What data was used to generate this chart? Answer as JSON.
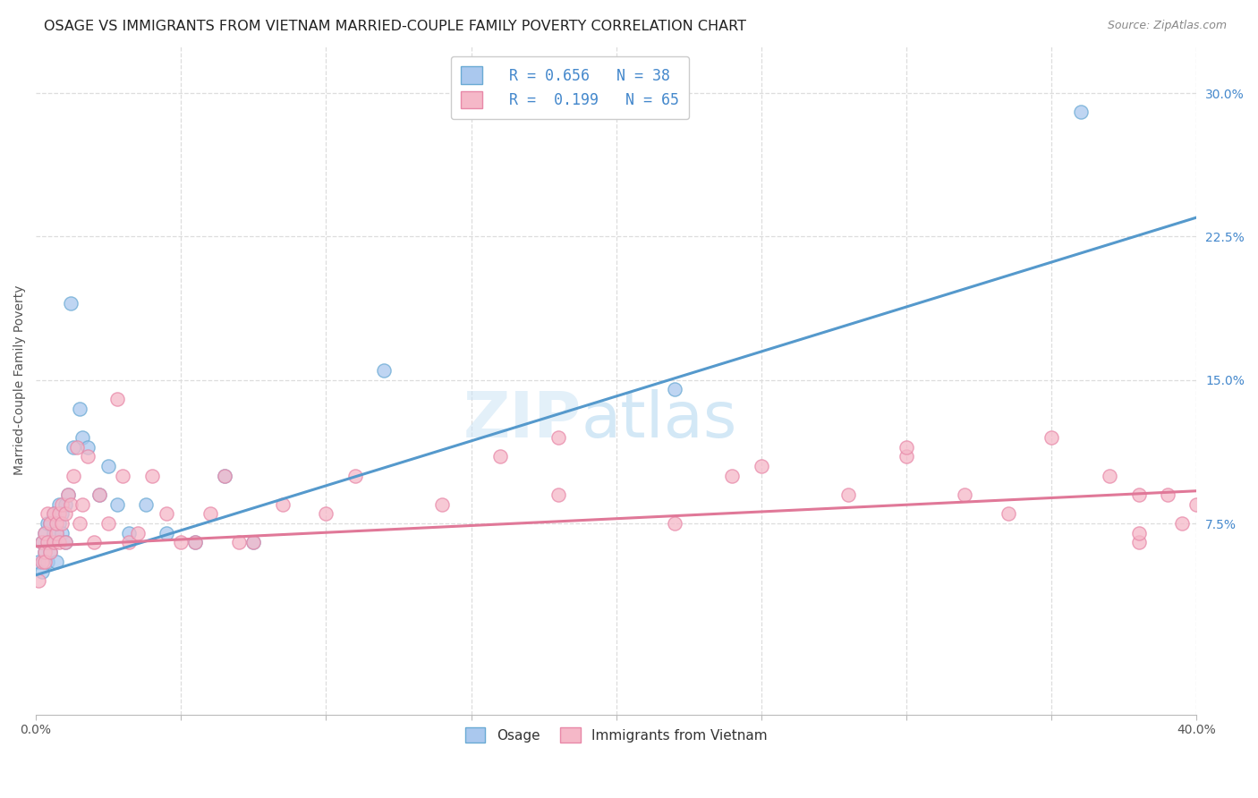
{
  "title": "OSAGE VS IMMIGRANTS FROM VIETNAM MARRIED-COUPLE FAMILY POVERTY CORRELATION CHART",
  "source": "Source: ZipAtlas.com",
  "ylabel": "Married-Couple Family Poverty",
  "ytick_labels": [
    "7.5%",
    "15.0%",
    "22.5%",
    "30.0%"
  ],
  "ytick_values": [
    0.075,
    0.15,
    0.225,
    0.3
  ],
  "xmin": 0.0,
  "xmax": 0.4,
  "ymin": -0.025,
  "ymax": 0.325,
  "color_blue_fill": "#aac8ee",
  "color_blue_edge": "#6aaad4",
  "color_blue_line": "#5599cc",
  "color_pink_fill": "#f5b8c8",
  "color_pink_edge": "#e888a8",
  "color_pink_line": "#e07898",
  "color_blue_text": "#4488cc",
  "color_label_text": "#333333",
  "background_color": "#ffffff",
  "grid_color": "#dddddd",
  "watermark_color": "#cce4f5",
  "title_fontsize": 11.5,
  "source_fontsize": 9,
  "tick_fontsize": 10,
  "ylabel_fontsize": 10,
  "legend_fontsize": 12,
  "osage_x": [
    0.001,
    0.002,
    0.002,
    0.003,
    0.003,
    0.004,
    0.004,
    0.005,
    0.005,
    0.005,
    0.006,
    0.006,
    0.007,
    0.007,
    0.008,
    0.008,
    0.009,
    0.009,
    0.01,
    0.01,
    0.011,
    0.012,
    0.013,
    0.015,
    0.016,
    0.018,
    0.022,
    0.025,
    0.028,
    0.032,
    0.038,
    0.045,
    0.055,
    0.065,
    0.075,
    0.12,
    0.22,
    0.36
  ],
  "osage_y": [
    0.055,
    0.065,
    0.05,
    0.06,
    0.07,
    0.055,
    0.075,
    0.065,
    0.075,
    0.06,
    0.07,
    0.08,
    0.055,
    0.07,
    0.075,
    0.085,
    0.07,
    0.08,
    0.085,
    0.065,
    0.09,
    0.19,
    0.115,
    0.135,
    0.12,
    0.115,
    0.09,
    0.105,
    0.085,
    0.07,
    0.085,
    0.07,
    0.065,
    0.1,
    0.065,
    0.155,
    0.145,
    0.29
  ],
  "vietnam_x": [
    0.001,
    0.002,
    0.002,
    0.003,
    0.003,
    0.003,
    0.004,
    0.004,
    0.005,
    0.005,
    0.006,
    0.006,
    0.007,
    0.007,
    0.008,
    0.008,
    0.009,
    0.009,
    0.01,
    0.01,
    0.011,
    0.012,
    0.013,
    0.014,
    0.015,
    0.016,
    0.018,
    0.02,
    0.022,
    0.025,
    0.028,
    0.03,
    0.032,
    0.035,
    0.04,
    0.045,
    0.05,
    0.055,
    0.06,
    0.065,
    0.07,
    0.075,
    0.085,
    0.1,
    0.11,
    0.14,
    0.16,
    0.18,
    0.22,
    0.25,
    0.28,
    0.3,
    0.32,
    0.35,
    0.37,
    0.38,
    0.38,
    0.39,
    0.395,
    0.4,
    0.18,
    0.24,
    0.3,
    0.335,
    0.38
  ],
  "vietnam_y": [
    0.045,
    0.055,
    0.065,
    0.06,
    0.07,
    0.055,
    0.065,
    0.08,
    0.06,
    0.075,
    0.065,
    0.08,
    0.07,
    0.075,
    0.08,
    0.065,
    0.075,
    0.085,
    0.065,
    0.08,
    0.09,
    0.085,
    0.1,
    0.115,
    0.075,
    0.085,
    0.11,
    0.065,
    0.09,
    0.075,
    0.14,
    0.1,
    0.065,
    0.07,
    0.1,
    0.08,
    0.065,
    0.065,
    0.08,
    0.1,
    0.065,
    0.065,
    0.085,
    0.08,
    0.1,
    0.085,
    0.11,
    0.09,
    0.075,
    0.105,
    0.09,
    0.11,
    0.09,
    0.12,
    0.1,
    0.065,
    0.07,
    0.09,
    0.075,
    0.085,
    0.12,
    0.1,
    0.115,
    0.08,
    0.09
  ],
  "blue_line_x0": 0.0,
  "blue_line_y0": 0.048,
  "blue_line_x1": 0.4,
  "blue_line_y1": 0.235,
  "pink_line_x0": 0.0,
  "pink_line_y0": 0.063,
  "pink_line_x1": 0.4,
  "pink_line_y1": 0.092
}
